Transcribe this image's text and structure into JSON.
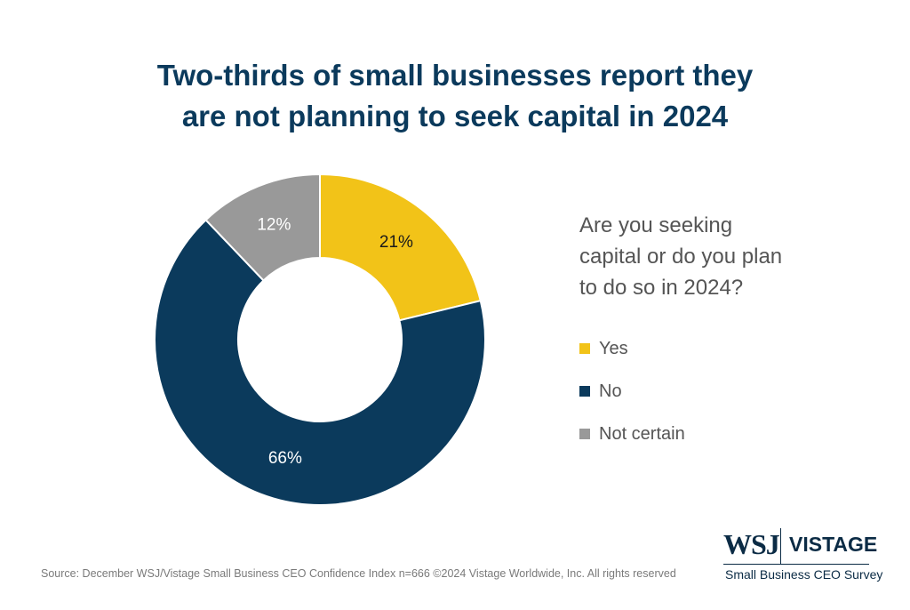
{
  "title_lines": [
    "Two-thirds of small businesses report they",
    "are not planning to seek capital in 2024"
  ],
  "question_lines": [
    "Are you seeking",
    "capital or do you plan",
    "to do so in 2024?"
  ],
  "colors": {
    "yes": "#f2c318",
    "no": "#0b3a5c",
    "not_certain": "#999999",
    "title": "#0b3a5c"
  },
  "chart_data": {
    "type": "pie",
    "donut": true,
    "categories": [
      "Yes",
      "No",
      "Not certain"
    ],
    "values": [
      21,
      66,
      12
    ],
    "labels": [
      "21%",
      "66%",
      "12%"
    ],
    "legend": "right"
  },
  "source": "Source: December WSJ/Vistage Small Business CEO Confidence Index n=666 ©2024 Vistage Worldwide, Inc. All rights reserved",
  "logo": {
    "wsj": "WSJ",
    "vistage": "VISTAGE",
    "tagline": "Small Business CEO Survey"
  }
}
